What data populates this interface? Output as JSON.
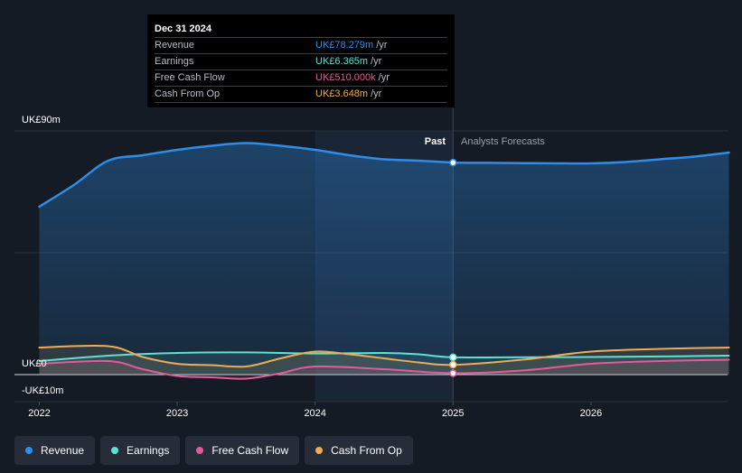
{
  "tooltip": {
    "date": "Dec 31 2024",
    "rows": [
      {
        "label": "Revenue",
        "value": "UK£78.279m",
        "unit": "/yr",
        "color": "#2e8de6"
      },
      {
        "label": "Earnings",
        "value": "UK£6.365m",
        "unit": "/yr",
        "color": "#5fe0d3"
      },
      {
        "label": "Free Cash Flow",
        "value": "UK£510.000k",
        "unit": "/yr",
        "color": "#e05c9c"
      },
      {
        "label": "Cash From Op",
        "value": "UK£3.648m",
        "unit": "/yr",
        "color": "#eeac56"
      }
    ]
  },
  "legend": [
    {
      "label": "Revenue",
      "color": "#2e8de6"
    },
    {
      "label": "Earnings",
      "color": "#5fe0d3"
    },
    {
      "label": "Free Cash Flow",
      "color": "#e05c9c"
    },
    {
      "label": "Cash From Op",
      "color": "#eeac56"
    }
  ],
  "chart_data": {
    "type": "area",
    "title": "",
    "y_label_top": "UK£90m",
    "y_label_zero": "UK£0",
    "y_label_bottom": "-UK£10m",
    "ylim": [
      -10,
      90
    ],
    "xlim": [
      2021.82,
      2026.99
    ],
    "x_ticks": [
      2022,
      2023,
      2024,
      2025,
      2026
    ],
    "x_tick_labels": [
      "2022",
      "2023",
      "2024",
      "2025",
      "2026"
    ],
    "past_label": "Past",
    "forecast_label": "Analysts Forecasts",
    "divider_x": 2025,
    "forecast_band_start": 2024,
    "series": [
      {
        "name": "Revenue",
        "color": "#2e8de6",
        "fill": true,
        "x": [
          2022,
          2022.25,
          2022.5,
          2022.75,
          2023,
          2023.25,
          2023.5,
          2023.75,
          2024,
          2024.25,
          2024.5,
          2024.75,
          2025,
          2025.25,
          2025.5,
          2025.75,
          2026,
          2026.25,
          2026.5,
          2026.75,
          2027
        ],
        "values": [
          62,
          70,
          79,
          81,
          83,
          84.5,
          85.5,
          84.5,
          83,
          81,
          79.5,
          79,
          78.3,
          78.2,
          78.1,
          78,
          78,
          78.5,
          79.5,
          80.5,
          82
        ]
      },
      {
        "name": "Earnings",
        "color": "#5fe0d3",
        "fill": false,
        "x": [
          2022,
          2022.5,
          2023,
          2023.5,
          2024,
          2024.5,
          2024.75,
          2025,
          2025.5,
          2026,
          2026.5,
          2027
        ],
        "values": [
          5,
          7,
          8,
          8.2,
          7.8,
          8,
          7.5,
          6.4,
          6.4,
          6.5,
          6.7,
          7
        ]
      },
      {
        "name": "Free Cash Flow",
        "color": "#e05c9c",
        "fill": false,
        "x": [
          2022,
          2022.5,
          2022.75,
          2023,
          2023.25,
          2023.5,
          2023.75,
          2024,
          2024.5,
          2025,
          2025.5,
          2026,
          2026.5,
          2027
        ],
        "values": [
          4,
          5,
          2,
          -0.5,
          -1,
          -1.5,
          0.5,
          3,
          2,
          0.5,
          1.5,
          4,
          5,
          5.5
        ]
      },
      {
        "name": "Cash From Op",
        "color": "#eeac56",
        "fill": false,
        "x": [
          2022,
          2022.5,
          2022.75,
          2023,
          2023.25,
          2023.5,
          2023.75,
          2024,
          2024.25,
          2024.5,
          2024.75,
          2025,
          2025.5,
          2026,
          2026.5,
          2027
        ],
        "values": [
          10,
          10.5,
          6.5,
          4,
          3.5,
          3,
          6,
          8.5,
          7.5,
          6,
          4.5,
          3.6,
          5.5,
          8.5,
          9.5,
          10
        ]
      }
    ],
    "highlight_x": 2025,
    "highlight_values": [
      78.279,
      6.365,
      0.51,
      3.648
    ]
  }
}
